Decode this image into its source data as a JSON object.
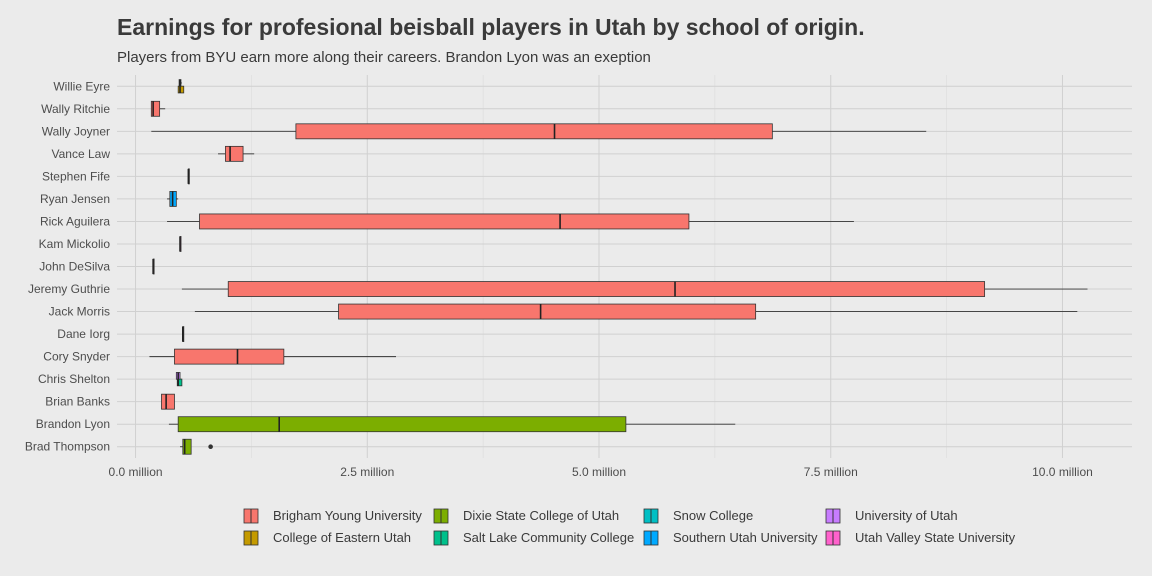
{
  "chart_data": {
    "type": "boxplot",
    "title": "Earnings for profesional beisball players in Utah by school of origin.",
    "subtitle": "Players from BYU earn more along their careers. Brandon Lyon was an exeption",
    "xlabel": "",
    "ylabel": "",
    "xlim": [
      -0.2,
      10.75
    ],
    "x_ticks": [
      0.0,
      2.5,
      5.0,
      7.5,
      10.0
    ],
    "x_tick_labels": [
      "0.0 million",
      "2.5 million",
      "5.0 million",
      "7.5 million",
      "10.0 million"
    ],
    "grid": true,
    "legend_position": "bottom",
    "schools": [
      {
        "name": "Brigham Young University",
        "color": "#F8766D"
      },
      {
        "name": "College of Eastern Utah",
        "color": "#C49A00"
      },
      {
        "name": "Dixie State College of Utah",
        "color": "#7CAE00"
      },
      {
        "name": "Salt Lake Community College",
        "color": "#00C08B"
      },
      {
        "name": "Snow College",
        "color": "#00BFC4"
      },
      {
        "name": "Southern Utah University",
        "color": "#00A9FF"
      },
      {
        "name": "University of Utah",
        "color": "#C77CFF"
      },
      {
        "name": "Utah Valley State University",
        "color": "#FF61CC"
      }
    ],
    "categories": [
      "Willie Eyre",
      "Wally Ritchie",
      "Wally Joyner",
      "Vance Law",
      "Stephen Fife",
      "Ryan Jensen",
      "Rick Aguilera",
      "Kam Mickolio",
      "John DeSilva",
      "Jeremy Guthrie",
      "Jack Morris",
      "Dane Iorg",
      "Cory Snyder",
      "Chris Shelton",
      "Brian Banks",
      "Brandon Lyon",
      "Brad Thompson"
    ],
    "boxes": [
      {
        "player": "Willie Eyre",
        "school": "Snow College",
        "whisker_low": 0.47,
        "q1": 0.47,
        "median": 0.48,
        "q3": 0.49,
        "whisker_high": 0.5,
        "offset": -0.22
      },
      {
        "player": "Willie Eyre",
        "school": "College of Eastern Utah",
        "whisker_low": 0.46,
        "q1": 0.46,
        "median": 0.48,
        "q3": 0.52,
        "whisker_high": 0.52,
        "offset": 0.22
      },
      {
        "player": "Wally Ritchie",
        "school": "Brigham Young University",
        "whisker_low": 0.17,
        "q1": 0.17,
        "median": 0.19,
        "q3": 0.26,
        "whisker_high": 0.32
      },
      {
        "player": "Wally Joyner",
        "school": "Brigham Young University",
        "whisker_low": 0.17,
        "q1": 1.73,
        "median": 4.52,
        "q3": 6.87,
        "whisker_high": 8.53
      },
      {
        "player": "Vance Law",
        "school": "Brigham Young University",
        "whisker_low": 0.89,
        "q1": 0.97,
        "median": 1.02,
        "q3": 1.16,
        "whisker_high": 1.28
      },
      {
        "player": "Stephen Fife",
        "school": "Utah Valley State University",
        "whisker_low": 0.57,
        "q1": 0.57,
        "median": 0.57,
        "q3": 0.57,
        "whisker_high": 0.57
      },
      {
        "player": "Ryan Jensen",
        "school": "Southern Utah University",
        "whisker_low": 0.34,
        "q1": 0.37,
        "median": 0.4,
        "q3": 0.44,
        "whisker_high": 0.46
      },
      {
        "player": "Rick Aguilera",
        "school": "Brigham Young University",
        "whisker_low": 0.34,
        "q1": 0.69,
        "median": 4.58,
        "q3": 5.97,
        "whisker_high": 7.75
      },
      {
        "player": "Kam Mickolio",
        "school": "Utah Valley State University",
        "whisker_low": 0.48,
        "q1": 0.48,
        "median": 0.48,
        "q3": 0.48,
        "whisker_high": 0.48
      },
      {
        "player": "John DeSilva",
        "school": "Brigham Young University",
        "whisker_low": 0.19,
        "q1": 0.19,
        "median": 0.19,
        "q3": 0.19,
        "whisker_high": 0.19
      },
      {
        "player": "Jeremy Guthrie",
        "school": "Brigham Young University",
        "whisker_low": 0.5,
        "q1": 1.0,
        "median": 5.82,
        "q3": 9.16,
        "whisker_high": 10.27
      },
      {
        "player": "Jack Morris",
        "school": "Brigham Young University",
        "whisker_low": 0.64,
        "q1": 2.19,
        "median": 4.37,
        "q3": 6.69,
        "whisker_high": 10.16
      },
      {
        "player": "Dane Iorg",
        "school": "Brigham Young University",
        "whisker_low": 0.51,
        "q1": 0.51,
        "median": 0.51,
        "q3": 0.51,
        "whisker_high": 0.51
      },
      {
        "player": "Cory Snyder",
        "school": "Brigham Young University",
        "whisker_low": 0.15,
        "q1": 0.42,
        "median": 1.1,
        "q3": 1.6,
        "whisker_high": 2.81
      },
      {
        "player": "Chris Shelton",
        "school": "Salt Lake Community College",
        "whisker_low": 0.45,
        "q1": 0.45,
        "median": 0.46,
        "q3": 0.5,
        "whisker_high": 0.5,
        "offset": 0.22
      },
      {
        "player": "Chris Shelton",
        "school": "University of Utah",
        "whisker_low": 0.44,
        "q1": 0.44,
        "median": 0.46,
        "q3": 0.48,
        "whisker_high": 0.48,
        "offset": -0.22
      },
      {
        "player": "Brian Banks",
        "school": "Brigham Young University",
        "whisker_low": 0.28,
        "q1": 0.28,
        "median": 0.33,
        "q3": 0.42,
        "whisker_high": 0.42
      },
      {
        "player": "Brandon Lyon",
        "school": "Dixie State College of Utah",
        "whisker_low": 0.36,
        "q1": 0.46,
        "median": 1.55,
        "q3": 5.29,
        "whisker_high": 6.47
      },
      {
        "player": "Brad Thompson",
        "school": "Dixie State College of Utah",
        "whisker_low": 0.48,
        "q1": 0.51,
        "median": 0.53,
        "q3": 0.6,
        "whisker_high": 0.6,
        "outliers": [
          0.81
        ]
      }
    ]
  }
}
